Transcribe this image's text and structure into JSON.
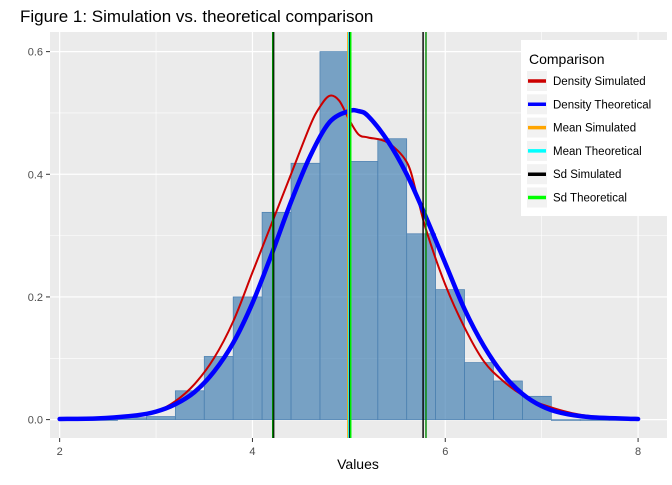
{
  "chart_data": {
    "type": "histogram",
    "title": "Figure 1: Simulation vs. theoretical comparison",
    "xlabel": "Values",
    "ylabel": "",
    "xlim": [
      1.9,
      8.3
    ],
    "ylim": [
      -0.03,
      0.632
    ],
    "x_ticks": [
      2,
      4,
      6,
      8
    ],
    "x_tick_labels": [
      "2",
      "4",
      "6",
      "8"
    ],
    "y_ticks": [
      0.0,
      0.2,
      0.4,
      0.6
    ],
    "y_tick_labels": [
      "0.0",
      "0.2",
      "0.4",
      "0.6"
    ],
    "grid": true,
    "background_color": "#ebebeb",
    "histogram": {
      "bin_width": 0.3,
      "bin_starts": [
        2.0,
        2.3,
        2.6,
        2.9,
        3.2,
        3.5,
        3.8,
        4.1,
        4.4,
        4.7,
        5.0,
        5.3,
        5.6,
        5.9,
        6.2,
        6.5,
        6.8,
        7.1,
        7.4,
        7.7
      ],
      "density": [
        0.0,
        0.0,
        0.003,
        0.005,
        0.047,
        0.103,
        0.2,
        0.338,
        0.418,
        0.6,
        0.421,
        0.458,
        0.303,
        0.212,
        0.093,
        0.063,
        0.038,
        0.0,
        0.0,
        0.0
      ],
      "fill_color": "#4682b4",
      "fill_opacity": 0.7
    },
    "series": [
      {
        "name": "Density Simulated",
        "color": "#cc0000",
        "x": [
          2.0,
          2.5,
          2.8,
          3.0,
          3.2,
          3.4,
          3.6,
          3.8,
          4.0,
          4.2,
          4.4,
          4.6,
          4.7,
          4.8,
          4.9,
          5.0,
          5.1,
          5.2,
          5.4,
          5.6,
          5.7,
          5.8,
          6.0,
          6.2,
          6.4,
          6.6,
          6.8,
          7.0,
          7.4,
          8.0
        ],
        "y": [
          0.0,
          0.003,
          0.006,
          0.013,
          0.03,
          0.058,
          0.1,
          0.16,
          0.24,
          0.32,
          0.4,
          0.48,
          0.51,
          0.528,
          0.52,
          0.49,
          0.465,
          0.46,
          0.452,
          0.42,
          0.37,
          0.31,
          0.22,
          0.15,
          0.095,
          0.063,
          0.04,
          0.025,
          0.008,
          0.0
        ]
      },
      {
        "name": "Density Theoretical",
        "color": "#0000ff",
        "x": [
          2.0,
          2.4,
          2.8,
          3.0,
          3.2,
          3.4,
          3.6,
          3.8,
          4.0,
          4.2,
          4.4,
          4.6,
          4.8,
          5.0,
          5.1,
          5.2,
          5.4,
          5.6,
          5.8,
          6.0,
          6.2,
          6.4,
          6.6,
          6.8,
          7.0,
          7.2,
          7.5,
          8.0
        ],
        "y": [
          0.001,
          0.002,
          0.007,
          0.013,
          0.025,
          0.045,
          0.078,
          0.125,
          0.19,
          0.27,
          0.355,
          0.43,
          0.485,
          0.503,
          0.503,
          0.495,
          0.455,
          0.4,
          0.33,
          0.255,
          0.18,
          0.12,
          0.074,
          0.042,
          0.022,
          0.011,
          0.004,
          0.001
        ]
      }
    ],
    "vlines": [
      {
        "name": "Mean Simulated",
        "x": 4.99,
        "color": "#ffa500"
      },
      {
        "name": "Mean Theoretical",
        "x": 5.0,
        "color": "#00ffff"
      },
      {
        "name": "Sd Simulated",
        "x": 5.01,
        "color": "#000000"
      },
      {
        "name": "Sd Theoretical",
        "x": 5.02,
        "color": "#00ff00"
      },
      {
        "name": "Sd Simulated",
        "x": 4.22,
        "color": "#000000"
      },
      {
        "name": "Sd Theoretical",
        "x": 4.21,
        "color": "#008800"
      },
      {
        "name": "Sd Simulated",
        "x": 5.77,
        "color": "#000000"
      },
      {
        "name": "Sd Theoretical",
        "x": 5.8,
        "color": "#008800"
      }
    ],
    "legend": {
      "title": "Comparison",
      "placement": "top-right",
      "entries": [
        {
          "label": "Density Simulated",
          "color": "#cc0000"
        },
        {
          "label": "Density Theoretical",
          "color": "#0000ff"
        },
        {
          "label": "Mean Simulated",
          "color": "#ffa500"
        },
        {
          "label": "Mean Theoretical",
          "color": "#00ffff"
        },
        {
          "label": "Sd Simulated",
          "color": "#000000"
        },
        {
          "label": "Sd Theoretical",
          "color": "#00ff00"
        }
      ]
    }
  }
}
